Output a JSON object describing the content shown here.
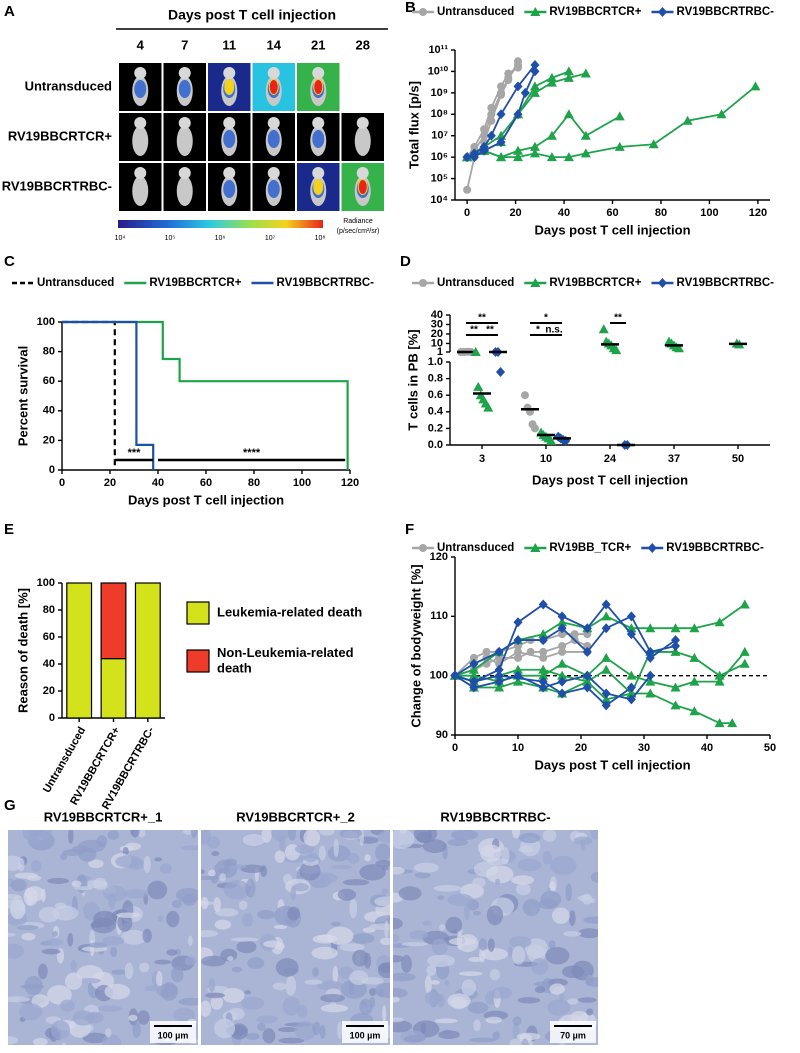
{
  "panel_a": {
    "panel": "A",
    "title": "Days post T cell injection",
    "days": [
      "4",
      "7",
      "11",
      "14",
      "21",
      "28"
    ],
    "rows": [
      "Untransduced",
      "RV19BBCRTCR+",
      "RV19BBCRTRBC-"
    ],
    "colorbar_ticks": [
      "10⁴",
      "10⁵",
      "10⁶",
      "10⁷",
      "10⁸"
    ],
    "colorbar_label": [
      "Radiance",
      "(p/sec/cm²/sr)"
    ]
  },
  "chart_data": [
    {
      "panel": "B",
      "type": "line",
      "ylog": true,
      "xlabel": "Days post T cell injection",
      "ylabel": "Total flux [p/s]",
      "xlim": [
        -5,
        125
      ],
      "xticks": [
        0,
        20,
        40,
        60,
        80,
        100,
        120
      ],
      "ylim": [
        10000.0,
        100000000000.0
      ],
      "yticks": [
        {
          "value": 10000.0,
          "label": "10⁴"
        },
        {
          "value": 100000.0,
          "label": "10⁵"
        },
        {
          "value": 1000000.0,
          "label": "10⁶"
        },
        {
          "value": 10000000.0,
          "label": "10⁷"
        },
        {
          "value": 100000000.0,
          "label": "10⁸"
        },
        {
          "value": 1000000000.0,
          "label": "10⁹"
        },
        {
          "value": 10000000000.0,
          "label": "10¹⁰"
        },
        {
          "value": 100000000000.0,
          "label": "10¹¹"
        }
      ],
      "series": [
        {
          "name": "Untransduced",
          "color": "#a6a6a6",
          "marker": "circle",
          "lines": [
            {
              "x": [
                0,
                3,
                7,
                10,
                14,
                17,
                21
              ],
              "values": [
                1000000.0,
                2000000.0,
                10000000.0,
                100000000.0,
                1000000000.0,
                5000000000.0,
                20000000000.0
              ]
            },
            {
              "x": [
                0,
                3,
                7,
                10,
                14,
                17,
                21
              ],
              "values": [
                30000.0,
                1000000.0,
                5000000.0,
                50000000.0,
                800000000.0,
                4000000000.0,
                30000000000.0
              ]
            },
            {
              "x": [
                0,
                3,
                7,
                10,
                14,
                17,
                21
              ],
              "values": [
                1000000.0,
                3000000.0,
                20000000.0,
                200000000.0,
                2000000000.0,
                8000000000.0,
                15000000000.0
              ]
            }
          ]
        },
        {
          "name": "RV19BBCRTCR+",
          "color": "#1fa34a",
          "marker": "triangle",
          "lines": [
            {
              "x": [
                0,
                7,
                14,
                21,
                28,
                35,
                42,
                49,
                63,
                77,
                91,
                105,
                119
              ],
              "values": [
                1000000.0,
                2000000.0,
                1000000.0,
                1000000.0,
                1500000.0,
                1000000.0,
                1000000.0,
                1500000.0,
                3000000.0,
                4000000.0,
                50000000.0,
                100000000.0,
                2000000000.0
              ]
            },
            {
              "x": [
                0,
                7,
                14,
                21,
                28,
                35,
                42,
                49
              ],
              "values": [
                1000000.0,
                3000000.0,
                10000000.0,
                100000000.0,
                1000000000.0,
                3000000000.0,
                5000000000.0,
                8000000000.0
              ]
            },
            {
              "x": [
                0,
                7,
                14,
                21,
                28,
                35,
                42
              ],
              "values": [
                1000000.0,
                2000000.0,
                5000000.0,
                100000000.0,
                2000000000.0,
                5000000000.0,
                10000000000.0
              ]
            },
            {
              "x": [
                0,
                7,
                14,
                21,
                28,
                35,
                42,
                49,
                63
              ],
              "values": [
                1000000.0,
                2000000.0,
                1000000.0,
                2000000.0,
                3000000.0,
                10000000.0,
                100000000.0,
                10000000.0,
                80000000.0
              ]
            }
          ]
        },
        {
          "name": "RV19BBCRTRBC-",
          "color": "#1f4fa8",
          "marker": "diamond",
          "lines": [
            {
              "x": [
                0,
                3,
                7,
                10,
                14,
                21,
                28
              ],
              "values": [
                1000000.0,
                1500000.0,
                3000000.0,
                10000000.0,
                100000000.0,
                2000000000.0,
                20000000000.0
              ]
            },
            {
              "x": [
                0,
                3,
                7,
                14,
                21,
                24,
                28
              ],
              "values": [
                1000000.0,
                1000000.0,
                2000000.0,
                5000000.0,
                100000000.0,
                1000000000.0,
                10000000000.0
              ]
            }
          ]
        }
      ]
    },
    {
      "panel": "C",
      "type": "line",
      "xlabel": "Days post T cell injection",
      "ylabel": "Percent survival",
      "xlim": [
        0,
        120
      ],
      "xticks": [
        0,
        20,
        40,
        60,
        80,
        100,
        120
      ],
      "ylim": [
        0,
        100
      ],
      "yticks": [
        0,
        20,
        40,
        60,
        80,
        100
      ],
      "series": [
        {
          "name": "Untransduced",
          "color": "#000000",
          "dashed": true,
          "x": [
            0,
            22,
            22
          ],
          "values": [
            100,
            100,
            0
          ]
        },
        {
          "name": "RV19BBCRTCR+",
          "color": "#1fa34a",
          "x": [
            0,
            42,
            42,
            49,
            49,
            119,
            119
          ],
          "values": [
            100,
            100,
            75,
            75,
            60,
            60,
            0
          ]
        },
        {
          "name": "RV19BBCRTRBC-",
          "color": "#1f4fa8",
          "x": [
            0,
            31,
            31,
            38,
            38
          ],
          "values": [
            100,
            100,
            17,
            17,
            0
          ]
        }
      ],
      "annotations": [
        "***",
        "****"
      ]
    },
    {
      "panel": "D",
      "type": "dot",
      "xlabel": "Days post T cell injection",
      "ylabel": "T cells in PB [%]",
      "categories": [
        "3",
        "10",
        "24",
        "37",
        "50"
      ],
      "ylim": [
        0,
        1
      ],
      "yticks": [
        {
          "value": 0,
          "label": "0.0"
        },
        0.2,
        0.4,
        0.6,
        0.8,
        {
          "value": 1,
          "label": "1.0"
        }
      ],
      "upper_ylim": [
        1,
        40
      ],
      "upper_yticks": [
        1,
        10,
        20,
        30,
        40
      ],
      "series": [
        {
          "name": "Untransduced",
          "color": "#a6a6a6",
          "marker": "circle",
          "values": [
            [
              1.0,
              1.0,
              1.1,
              1.2,
              1.0
            ],
            [
              0.6,
              0.45,
              0.4,
              0.25,
              0.2
            ],
            null,
            null,
            null
          ],
          "medians": [
            1.0,
            0.43,
            null,
            null,
            null
          ]
        },
        {
          "name": "RV19BBCRTCR+",
          "color": "#1fa34a",
          "marker": "triangle",
          "values": [
            [
              1.0,
              0.7,
              0.6,
              0.55,
              0.5,
              0.45
            ],
            [
              0.15,
              0.12,
              0.1,
              0.08,
              0.05
            ],
            [
              25,
              12,
              10,
              8,
              5,
              3
            ],
            [
              12,
              10,
              8,
              6,
              5
            ],
            [
              10,
              9
            ]
          ],
          "medians": [
            0.62,
            0.12,
            9,
            8,
            9.5
          ]
        },
        {
          "name": "RV19BBCRTRBC-",
          "color": "#1f4fa8",
          "marker": "diamond",
          "values": [
            [
              1.0,
              1.0,
              0.88
            ],
            [
              0.1,
              0.08,
              0.06,
              0.05
            ],
            [
              0,
              0
            ],
            null,
            null
          ],
          "medians": [
            1.0,
            0.08,
            0,
            null,
            null
          ]
        }
      ],
      "annotations": [
        "**",
        "**",
        "**",
        "*",
        "*",
        "n.s.",
        "**"
      ]
    },
    {
      "panel": "E",
      "type": "stacked_bar",
      "ylabel": "Reason of death [%]",
      "categories": [
        "Untransduced",
        "RV19BBCRTCR+",
        "RV19BBCRTRBC-"
      ],
      "ylim": [
        0,
        100
      ],
      "yticks": [
        0,
        20,
        40,
        60,
        80,
        100
      ],
      "series": [
        {
          "name": "Leukemia-related death",
          "color": "#d4e21c",
          "values": [
            100,
            44,
            100
          ]
        },
        {
          "name": "Non-Leukemia-related death",
          "color": "#ee3b2a",
          "values": [
            0,
            56,
            0
          ]
        }
      ]
    },
    {
      "panel": "F",
      "type": "line",
      "xlabel": "Days post T cell injection",
      "ylabel": "Change of bodyweight [%]",
      "xlim": [
        0,
        50
      ],
      "xticks": [
        0,
        10,
        20,
        30,
        40,
        50
      ],
      "ylim": [
        90,
        120
      ],
      "yticks": [
        90,
        100,
        110,
        120
      ],
      "hline": 100,
      "series": [
        {
          "name": "Untransduced",
          "color": "#a6a6a6",
          "marker": "circle",
          "lines": [
            {
              "x": [
                0,
                3,
                5,
                7,
                10,
                12,
                14,
                17,
                19,
                21
              ],
              "values": [
                100,
                103,
                104,
                104,
                105,
                106,
                106,
                107,
                107,
                107
              ]
            },
            {
              "x": [
                0,
                3,
                5,
                7,
                10,
                12,
                14,
                17,
                19,
                21
              ],
              "values": [
                100,
                101,
                102,
                103,
                103,
                104,
                104,
                105,
                106,
                105
              ]
            },
            {
              "x": [
                0,
                3,
                5,
                7,
                10,
                14,
                17,
                21
              ],
              "values": [
                100,
                102,
                103,
                102,
                104,
                103,
                104,
                104
              ]
            }
          ]
        },
        {
          "name": "RV19BB_TCR+",
          "color": "#1fa34a",
          "marker": "triangle",
          "lines": [
            {
              "x": [
                0,
                3,
                7,
                10,
                14,
                17,
                21,
                24,
                28,
                31,
                35,
                38,
                42,
                46
              ],
              "values": [
                100,
                101,
                104,
                106,
                107,
                109,
                108,
                110,
                108,
                108,
                108,
                108,
                109,
                112
              ]
            },
            {
              "x": [
                0,
                3,
                7,
                10,
                14,
                17,
                21,
                24,
                28,
                31,
                35,
                38,
                42,
                44
              ],
              "values": [
                100,
                99,
                100,
                101,
                101,
                100,
                99,
                101,
                97,
                97,
                95,
                94,
                92,
                92
              ]
            },
            {
              "x": [
                0,
                3,
                7,
                10,
                14,
                17,
                21,
                24,
                28,
                31,
                35,
                38,
                42,
                46
              ],
              "values": [
                100,
                100,
                99,
                100,
                100,
                102,
                100,
                103,
                100,
                99,
                98,
                99,
                99,
                104
              ]
            },
            {
              "x": [
                0,
                3,
                7,
                10,
                14,
                17,
                21,
                24,
                28,
                31,
                35,
                38,
                42,
                46
              ],
              "values": [
                100,
                98,
                98,
                99,
                98,
                97,
                99,
                96,
                97,
                104,
                104,
                103,
                100,
                102
              ]
            }
          ]
        },
        {
          "name": "RV19BBCRTRBC-",
          "color": "#1f4fa8",
          "marker": "diamond",
          "lines": [
            {
              "x": [
                0,
                3,
                7,
                10,
                14,
                17,
                21,
                24,
                28,
                31,
                35
              ],
              "values": [
                100,
                99,
                101,
                109,
                112,
                110,
                108,
                112,
                107,
                103,
                106
              ]
            },
            {
              "x": [
                0,
                3,
                7,
                10,
                14,
                17,
                21,
                24,
                28,
                31
              ],
              "values": [
                100,
                98,
                99,
                100,
                98,
                99,
                100,
                97,
                96,
                100
              ]
            },
            {
              "x": [
                0,
                3,
                7,
                10,
                14,
                17,
                21,
                24,
                28,
                31,
                35
              ],
              "values": [
                100,
                102,
                104,
                106,
                106,
                108,
                104,
                108,
                110,
                104,
                105
              ]
            },
            {
              "x": [
                0,
                3,
                7,
                14,
                17,
                21,
                24,
                28
              ],
              "values": [
                100,
                99,
                100,
                99,
                97,
                98,
                95,
                98
              ]
            }
          ]
        }
      ]
    }
  ],
  "panel_g": {
    "panel": "G",
    "images": [
      {
        "label": "RV19BBCRTCR+_1",
        "scale_bar": "100 µm"
      },
      {
        "label": "RV19BBCRTCR+_2",
        "scale_bar": "100 µm"
      },
      {
        "label": "RV19BBCRTRBC-",
        "scale_bar": "70 µm"
      }
    ]
  }
}
